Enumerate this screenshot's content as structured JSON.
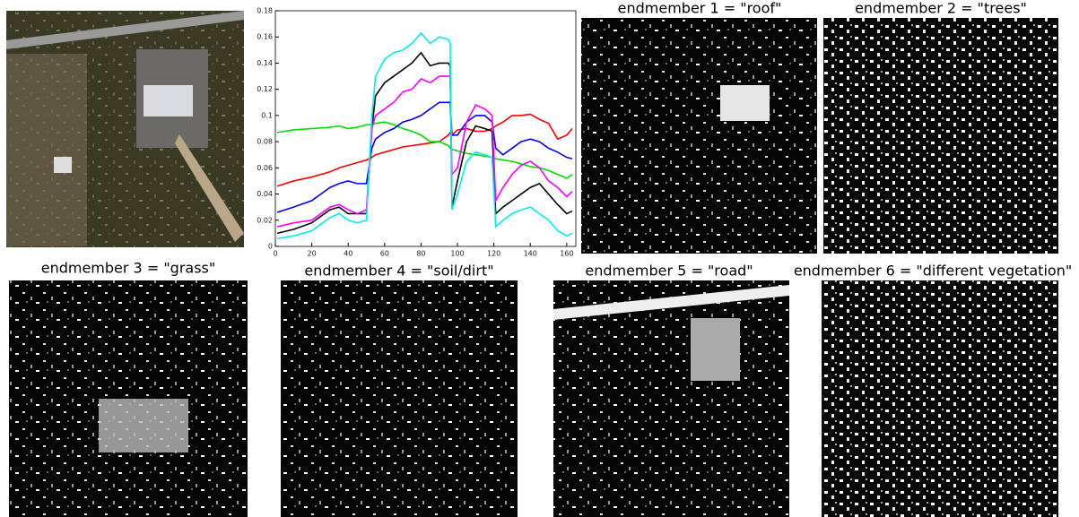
{
  "chart_data": {
    "type": "line",
    "x": [
      1,
      10,
      20,
      30,
      35,
      40,
      45,
      50,
      53,
      55,
      60,
      65,
      70,
      75,
      80,
      85,
      90,
      95,
      96,
      97,
      100,
      105,
      110,
      115,
      119,
      121,
      125,
      130,
      135,
      140,
      145,
      150,
      155,
      160,
      163
    ],
    "xlim": [
      0,
      165
    ],
    "xticks": [
      0,
      20,
      40,
      60,
      80,
      100,
      120,
      140,
      160
    ],
    "ylim": [
      0,
      0.18
    ],
    "yticks": [
      0,
      0.02,
      0.04,
      0.06,
      0.08,
      0.1,
      0.12,
      0.14,
      0.16,
      0.18
    ],
    "series": [
      {
        "color": "#ff0000",
        "values": [
          0.046,
          0.05,
          0.053,
          0.057,
          0.06,
          0.062,
          0.064,
          0.066,
          0.068,
          0.07,
          0.072,
          0.074,
          0.076,
          0.077,
          0.078,
          0.079,
          0.08,
          0.085,
          0.087,
          0.085,
          0.089,
          0.09,
          0.088,
          0.088,
          0.09,
          0.092,
          0.095,
          0.1,
          0.1,
          0.101,
          0.097,
          0.094,
          0.082,
          0.085,
          0.09
        ]
      },
      {
        "color": "#00dd00",
        "values": [
          0.087,
          0.089,
          0.09,
          0.091,
          0.092,
          0.09,
          0.091,
          0.093,
          0.093,
          0.094,
          0.095,
          0.093,
          0.09,
          0.088,
          0.085,
          0.08,
          0.08,
          0.077,
          0.075,
          0.074,
          0.073,
          0.071,
          0.07,
          0.069,
          0.068,
          0.067,
          0.066,
          0.065,
          0.063,
          0.061,
          0.06,
          0.058,
          0.055,
          0.052,
          0.055
        ]
      },
      {
        "color": "#0000ff",
        "values": [
          0.026,
          0.03,
          0.035,
          0.045,
          0.048,
          0.05,
          0.048,
          0.048,
          0.075,
          0.082,
          0.087,
          0.09,
          0.095,
          0.097,
          0.1,
          0.105,
          0.11,
          0.11,
          0.11,
          0.085,
          0.085,
          0.095,
          0.1,
          0.1,
          0.095,
          0.075,
          0.07,
          0.075,
          0.08,
          0.082,
          0.08,
          0.075,
          0.072,
          0.068,
          0.067
        ]
      },
      {
        "color": "#000000",
        "values": [
          0.01,
          0.013,
          0.018,
          0.028,
          0.03,
          0.025,
          0.025,
          0.025,
          0.09,
          0.115,
          0.125,
          0.13,
          0.135,
          0.14,
          0.148,
          0.138,
          0.14,
          0.14,
          0.138,
          0.03,
          0.05,
          0.08,
          0.092,
          0.09,
          0.088,
          0.025,
          0.03,
          0.035,
          0.04,
          0.045,
          0.048,
          0.04,
          0.032,
          0.025,
          0.027
        ]
      },
      {
        "color": "#ff00ff",
        "values": [
          0.015,
          0.018,
          0.02,
          0.03,
          0.032,
          0.028,
          0.025,
          0.028,
          0.09,
          0.1,
          0.105,
          0.11,
          0.118,
          0.12,
          0.128,
          0.125,
          0.13,
          0.13,
          0.13,
          0.055,
          0.06,
          0.095,
          0.108,
          0.105,
          0.1,
          0.035,
          0.045,
          0.055,
          0.062,
          0.065,
          0.06,
          0.05,
          0.045,
          0.038,
          0.042
        ]
      },
      {
        "color": "#00eeee",
        "values": [
          0.006,
          0.008,
          0.012,
          0.022,
          0.025,
          0.02,
          0.018,
          0.02,
          0.1,
          0.13,
          0.143,
          0.148,
          0.15,
          0.155,
          0.163,
          0.155,
          0.16,
          0.158,
          0.155,
          0.028,
          0.04,
          0.065,
          0.072,
          0.07,
          0.068,
          0.015,
          0.02,
          0.025,
          0.028,
          0.03,
          0.025,
          0.02,
          0.012,
          0.008,
          0.01
        ]
      }
    ]
  },
  "maps": [
    {
      "title": "endmember 1 = \"roof\""
    },
    {
      "title": "endmember 2 = \"trees\""
    },
    {
      "title": "endmember 3 = \"grass\""
    },
    {
      "title": "endmember 4 = \"soil/dirt\""
    },
    {
      "title": "endmember 5 = \"road\""
    },
    {
      "title": "endmember 6 = \"different vegetation\""
    }
  ]
}
